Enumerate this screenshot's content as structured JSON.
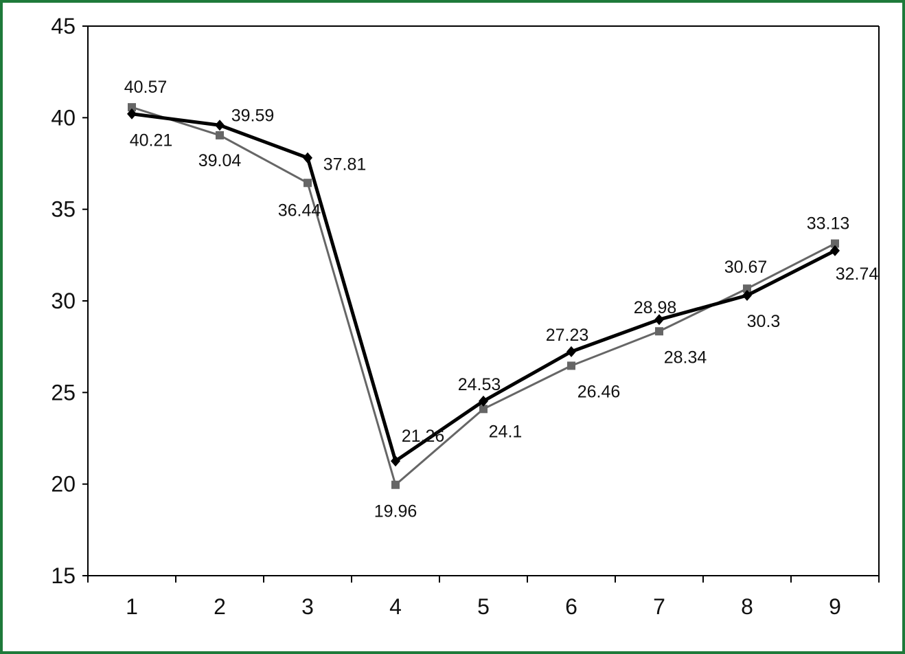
{
  "chart_data": {
    "type": "line",
    "title": "",
    "xlabel": "",
    "ylabel": "",
    "x": [
      1,
      2,
      3,
      4,
      5,
      6,
      7,
      8,
      9
    ],
    "ylim": [
      15,
      45
    ],
    "yticks": [
      15,
      20,
      25,
      30,
      35,
      40,
      45
    ],
    "grid": false,
    "legend": "none",
    "series": [
      {
        "color": "#666666",
        "marker": "square",
        "values": [
          40.57,
          39.04,
          36.44,
          19.96,
          24.1,
          26.46,
          28.34,
          30.67,
          33.13
        ],
        "labels": [
          "40.57",
          "39.04",
          "36.44",
          "19.96",
          "24.1",
          "26.46",
          "28.34",
          "30.67",
          "33.13"
        ]
      },
      {
        "color": "#000000",
        "marker": "diamond",
        "values": [
          40.21,
          39.59,
          37.81,
          21.26,
          24.53,
          27.23,
          28.98,
          30.3,
          32.74
        ],
        "labels": [
          "40.21",
          "39.59",
          "37.81",
          "21.26",
          "24.53",
          "27.23",
          "28.98",
          "30.3",
          "32.74"
        ]
      }
    ]
  }
}
